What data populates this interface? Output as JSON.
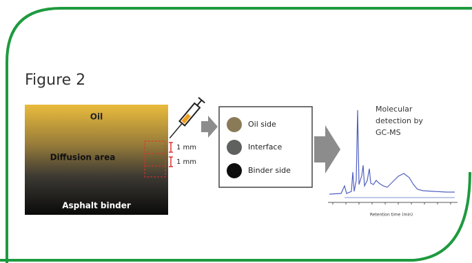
{
  "title": "Figure 2",
  "sample": {
    "top": "Oil",
    "middle": "Diffusion area",
    "bottom": "Asphalt binder",
    "scale": [
      "1 mm",
      "1 mm"
    ]
  },
  "legend": [
    {
      "label": "Oil side",
      "color": "#8a7a58"
    },
    {
      "label": "Interface",
      "color": "#5e615e"
    },
    {
      "label": "Binder side",
      "color": "#0d0d0d"
    }
  ],
  "detection": [
    "Molecular",
    "detection by",
    "GC-MS"
  ],
  "chromatogram": {
    "x_label": "Retention time (min)"
  }
}
